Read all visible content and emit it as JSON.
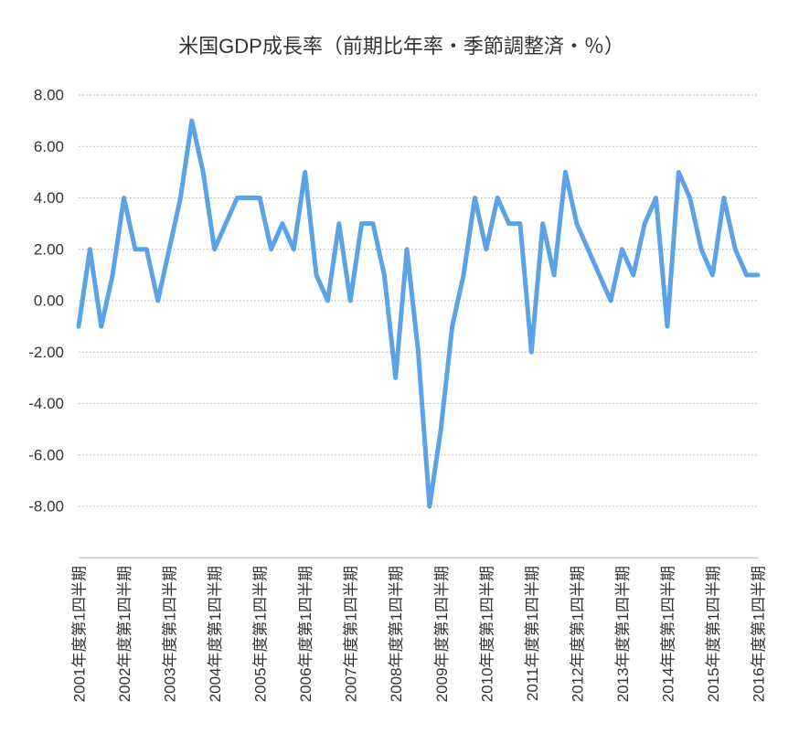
{
  "chart_data": {
    "type": "line",
    "title": "米国GDP成長率（前期比年率・季節調整済・％）",
    "xlabel": "",
    "ylabel": "",
    "categories": [
      "2001年度第1四半期",
      "",
      "",
      "",
      "2002年度第1四半期",
      "",
      "",
      "",
      "2003年度第1四半期",
      "",
      "",
      "",
      "2004年度第1四半期",
      "",
      "",
      "",
      "2005年度第1四半期",
      "",
      "",
      "",
      "2006年度第1四半期",
      "",
      "",
      "",
      "2007年度第1四半期",
      "",
      "",
      "",
      "2008年度第1四半期",
      "",
      "",
      "",
      "2009年度第1四半期",
      "",
      "",
      "",
      "2010年度第1四半期",
      "",
      "",
      "",
      "2011年度第1四半期",
      "",
      "",
      "",
      "2012年度第1四半期",
      "",
      "",
      "",
      "2013年度第1四半期",
      "",
      "",
      "",
      "2014年度第1四半期",
      "",
      "",
      "",
      "2015年度第1四半期",
      "",
      "",
      "",
      "2016年度第1四半期"
    ],
    "series": [
      {
        "values": [
          -1,
          2,
          -1,
          1,
          4,
          2,
          2,
          0,
          2,
          4,
          7,
          5,
          2,
          3,
          4,
          4,
          4,
          2,
          3,
          2,
          5,
          1,
          0,
          3,
          0,
          3,
          3,
          1,
          -3,
          2,
          -2,
          -8,
          -5,
          -1,
          1,
          4,
          2,
          4,
          3,
          3,
          -2,
          3,
          1,
          5,
          3,
          2,
          1,
          0,
          2,
          1,
          3,
          4,
          -1,
          5,
          4,
          2,
          1,
          4,
          2,
          1,
          1
        ]
      }
    ],
    "ylim": [
      -10,
      8
    ],
    "y_ticks": [
      {
        "value": 8,
        "label": "8.00"
      },
      {
        "value": 6,
        "label": "6.00"
      },
      {
        "value": 4,
        "label": "4.00"
      },
      {
        "value": 2,
        "label": "2.00"
      },
      {
        "value": 0,
        "label": "0.00"
      },
      {
        "value": -2,
        "label": "-2.00"
      },
      {
        "value": -4,
        "label": "-4.00"
      },
      {
        "value": -6,
        "label": "-6.00"
      },
      {
        "value": -8,
        "label": "-8.00"
      }
    ],
    "grid": true,
    "legend": false
  },
  "colors": {
    "line": "#5ba3e6",
    "grid": "#a6a6a6",
    "axis": "#bfbfbf",
    "text": "#333333",
    "background": "#ffffff"
  }
}
